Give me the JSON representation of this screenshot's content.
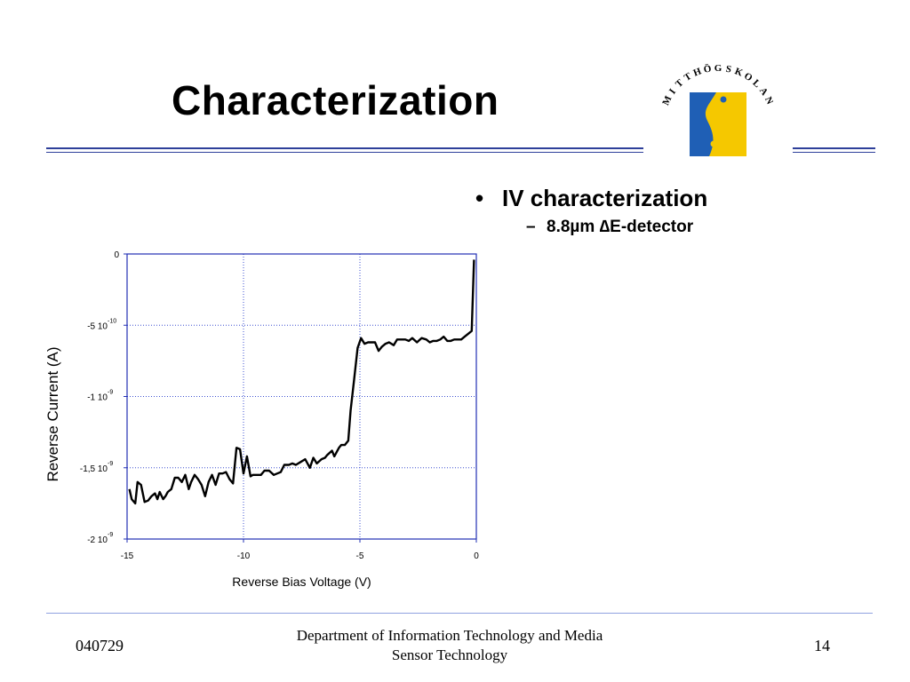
{
  "slide": {
    "title": "Characterization",
    "bullet1": "IV characterization",
    "bullet2": "8.8µm ∆E-detector",
    "bullet_marker": "•",
    "dash_marker": "–"
  },
  "footer": {
    "date": "040729",
    "dept": "Department of Information Technology and Media",
    "subject": "Sensor Technology",
    "page": "14"
  },
  "logo": {
    "text": "MITTHÖGSKOLAN",
    "colors": {
      "yellow": "#f5c800",
      "blue": "#1f5fb5"
    }
  },
  "colors": {
    "accent": "#2e3f9a",
    "grid": "#3b4fd0"
  },
  "chart_data": {
    "type": "line",
    "xlabel": "Reverse Bias Voltage (V)",
    "ylabel": "Reverse Current (A)",
    "xlim": [
      -15,
      0
    ],
    "ylim": [
      -2e-09,
      0
    ],
    "grid": true,
    "x_ticks": [
      "-15",
      "-10",
      "-5",
      "0"
    ],
    "x_tick_values": [
      -15,
      -10,
      -5,
      0
    ],
    "y_ticks": [
      {
        "value": 0,
        "base": "0",
        "exp": ""
      },
      {
        "value": -5e-10,
        "base": "-5 10",
        "exp": "-10"
      },
      {
        "value": -1e-09,
        "base": "-1 10",
        "exp": "-9"
      },
      {
        "value": -1.5e-09,
        "base": "-1,5 10",
        "exp": "-9"
      },
      {
        "value": -2e-09,
        "base": "-2 10",
        "exp": "-9"
      }
    ],
    "series": [
      {
        "x": [
          -14.9,
          -14.8,
          -14.65,
          -14.55,
          -14.4,
          -14.25,
          -14.1,
          -13.95,
          -13.8,
          -13.7,
          -13.6,
          -13.45,
          -13.35,
          -13.25,
          -13.1,
          -12.95,
          -12.8,
          -12.65,
          -12.5,
          -12.35,
          -12.25,
          -12.1,
          -11.95,
          -11.8,
          -11.65,
          -11.5,
          -11.35,
          -11.2,
          -11.05,
          -10.9,
          -10.75,
          -10.6,
          -10.45,
          -10.3,
          -10.15,
          -10.0,
          -9.85,
          -9.7,
          -9.6,
          -9.5,
          -9.35,
          -9.25,
          -9.1,
          -8.9,
          -8.7,
          -8.55,
          -8.4,
          -8.25,
          -8.05,
          -7.9,
          -7.75,
          -7.55,
          -7.35,
          -7.15,
          -7.0,
          -6.85,
          -6.65,
          -6.5,
          -6.4,
          -6.2,
          -6.1,
          -5.9,
          -5.8,
          -5.65,
          -5.5,
          -5.4,
          -5.25,
          -5.1,
          -4.95,
          -4.8,
          -4.65,
          -4.5,
          -4.35,
          -4.2,
          -4.05,
          -3.9,
          -3.75,
          -3.55,
          -3.4,
          -3.2,
          -3.05,
          -2.9,
          -2.75,
          -2.55,
          -2.35,
          -2.15,
          -2.0,
          -1.85,
          -1.7,
          -1.55,
          -1.4,
          -1.25,
          -1.1,
          -0.95,
          -0.8,
          -0.65,
          -0.5,
          -0.35,
          -0.2,
          -0.1
        ],
        "y": [
          -1.65e-09,
          -1.72e-09,
          -1.75e-09,
          -1.6e-09,
          -1.62e-09,
          -1.74e-09,
          -1.73e-09,
          -1.7e-09,
          -1.68e-09,
          -1.72e-09,
          -1.67e-09,
          -1.72e-09,
          -1.7e-09,
          -1.67e-09,
          -1.65e-09,
          -1.57e-09,
          -1.57e-09,
          -1.6e-09,
          -1.55e-09,
          -1.65e-09,
          -1.6e-09,
          -1.55e-09,
          -1.58e-09,
          -1.62e-09,
          -1.7e-09,
          -1.6e-09,
          -1.55e-09,
          -1.62e-09,
          -1.54e-09,
          -1.54e-09,
          -1.53e-09,
          -1.58e-09,
          -1.61e-09,
          -1.36e-09,
          -1.37e-09,
          -1.54e-09,
          -1.42e-09,
          -1.56e-09,
          -1.55e-09,
          -1.55e-09,
          -1.55e-09,
          -1.55e-09,
          -1.52e-09,
          -1.52e-09,
          -1.55e-09,
          -1.54e-09,
          -1.53e-09,
          -1.48e-09,
          -1.48e-09,
          -1.47e-09,
          -1.48e-09,
          -1.46e-09,
          -1.44e-09,
          -1.5e-09,
          -1.43e-09,
          -1.47e-09,
          -1.44e-09,
          -1.43e-09,
          -1.41e-09,
          -1.38e-09,
          -1.42e-09,
          -1.36e-09,
          -1.34e-09,
          -1.34e-09,
          -1.31e-09,
          -1.1e-09,
          -8.8e-10,
          -6.6e-10,
          -5.9e-10,
          -6.3e-10,
          -6.2e-10,
          -6.2e-10,
          -6.2e-10,
          -6.8e-10,
          -6.5e-10,
          -6.3e-10,
          -6.2e-10,
          -6.4e-10,
          -6e-10,
          -6e-10,
          -6e-10,
          -6.1e-10,
          -5.9e-10,
          -6.2e-10,
          -5.9e-10,
          -6e-10,
          -6.2e-10,
          -6.1e-10,
          -6.1e-10,
          -6e-10,
          -5.8e-10,
          -6.1e-10,
          -6.1e-10,
          -6e-10,
          -6e-10,
          -6e-10,
          -5.8e-10,
          -5.6e-10,
          -5.4e-10,
          -4e-11
        ]
      }
    ]
  }
}
